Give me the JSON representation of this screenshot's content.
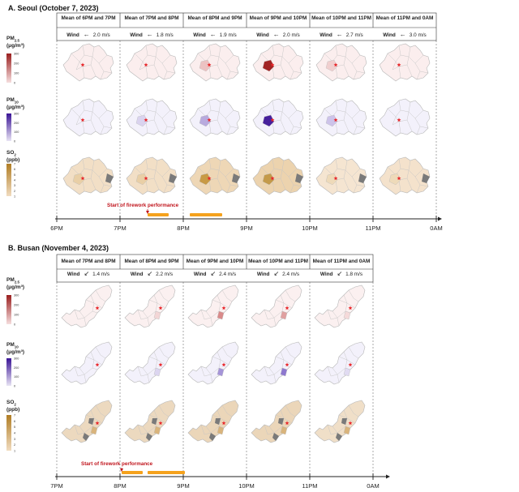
{
  "panels": [
    {
      "title": "A. Seoul (October 7, 2023)",
      "columns": [
        {
          "header": "Mean of 6PM and 7PM",
          "wind_label": "Wind",
          "wind_dir": "←",
          "wind_speed": "2.0 m/s"
        },
        {
          "header": "Mean of 7PM and 8PM",
          "wind_label": "Wind",
          "wind_dir": "←",
          "wind_speed": "1.8 m/s"
        },
        {
          "header": "Mean of 8PM and 9PM",
          "wind_label": "Wind",
          "wind_dir": "←",
          "wind_speed": "1.9 m/s"
        },
        {
          "header": "Mean of 9PM and 10PM",
          "wind_label": "Wind",
          "wind_dir": "←",
          "wind_speed": "2.0 m/s"
        },
        {
          "header": "Mean of 10PM and 11PM",
          "wind_label": "Wind",
          "wind_dir": "←",
          "wind_speed": "2.7 m/s"
        },
        {
          "header": "Mean of 11PM and 0AM",
          "wind_label": "Wind",
          "wind_dir": "←",
          "wind_speed": "3.0 m/s"
        }
      ],
      "timeline_ticks": [
        "6PM",
        "7PM",
        "8PM",
        "9PM",
        "10PM",
        "11PM",
        "0AM"
      ],
      "firework_label": "Start of firework performance"
    },
    {
      "title": "B. Busan (November 4, 2023)",
      "columns": [
        {
          "header": "Mean of 7PM and 8PM",
          "wind_label": "Wind",
          "wind_dir": "↙",
          "wind_speed": "1.4 m/s"
        },
        {
          "header": "Mean of 8PM and 9PM",
          "wind_label": "Wind",
          "wind_dir": "↙",
          "wind_speed": "2.2 m/s"
        },
        {
          "header": "Mean of 9PM and 10PM",
          "wind_label": "Wind",
          "wind_dir": "↙",
          "wind_speed": "2.4 m/s"
        },
        {
          "header": "Mean of 10PM and 11PM",
          "wind_label": "Wind",
          "wind_dir": "↙",
          "wind_speed": "2.4 m/s"
        },
        {
          "header": "Mean of 11PM and 0AM",
          "wind_label": "Wind",
          "wind_dir": "↙",
          "wind_speed": "1.8 m/s"
        }
      ],
      "timeline_ticks": [
        "7PM",
        "8PM",
        "9PM",
        "10PM",
        "11PM",
        "0AM"
      ],
      "firework_label": "Start of firework performance"
    }
  ],
  "legends": {
    "pm25": {
      "name": "PM",
      "sub": "2.5",
      "unit": "(μg/m³)",
      "ticks": [
        "300",
        "200",
        "100",
        "0"
      ],
      "color": "#8b1a1a"
    },
    "pm10": {
      "name": "PM",
      "sub": "10",
      "unit": "(μg/m³)",
      "ticks": [
        "300",
        "200",
        "100",
        "0"
      ],
      "color": "#3b1a8f"
    },
    "so2": {
      "name": "SO",
      "sub": "2",
      "unit": "(ppb)",
      "ticks": [
        "7",
        "6",
        "5",
        "4",
        "3",
        "2",
        "1"
      ],
      "color": "#b8862a"
    }
  },
  "colors": {
    "pm25_low": "#f6dede",
    "pm25_high": "#9a1e1e",
    "pm10_low": "#e8e4f4",
    "pm10_high": "#3a1496",
    "so2_low": "#f1dcc0",
    "so2_high": "#b07d24",
    "nodata": "#7a7a7a",
    "star": "#e8262a",
    "bar": "#f5a21d"
  }
}
